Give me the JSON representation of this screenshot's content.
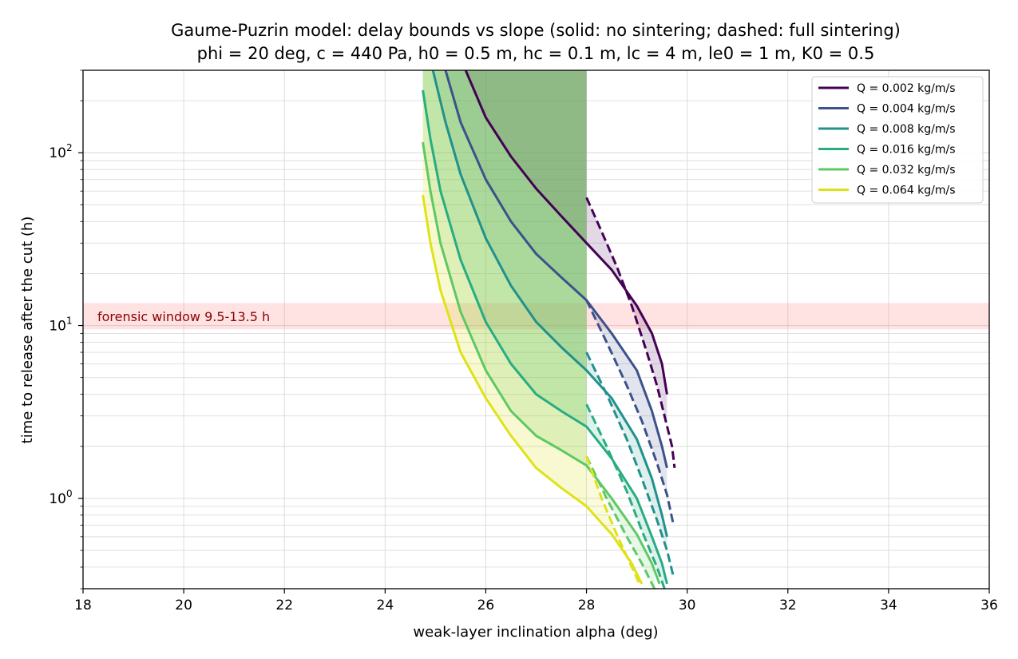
{
  "chart_data": {
    "type": "line",
    "title": "Gaume-Puzrin model: delay bounds vs slope (solid: no sintering; dashed: full sintering)",
    "subtitle": "phi = 20 deg, c = 440 Pa, h0 = 0.5 m, hc = 0.1 m, lc = 4 m, le0 = 1 m, K0 = 0.5",
    "xlabel": "weak-layer inclination alpha (deg)",
    "ylabel": "time to release after the cut (h)",
    "xlim": [
      18,
      36
    ],
    "ylim": [
      0.3,
      300
    ],
    "yscale": "log",
    "x_ticks": [
      18,
      20,
      22,
      24,
      26,
      28,
      30,
      32,
      34,
      36
    ],
    "y_ticks": [
      {
        "value": 1,
        "base": "10",
        "exp": "0"
      },
      {
        "value": 10,
        "base": "10",
        "exp": "1"
      },
      {
        "value": 100,
        "base": "10",
        "exp": "2"
      }
    ],
    "grid": true,
    "legend_position": "top-right",
    "annotation": {
      "text": "forensic window 9.5-13.5 h",
      "y_range": [
        9.5,
        13.5
      ],
      "color": "#ff9999",
      "text_color": "#8b0000"
    },
    "series": [
      {
        "name": "Q = 0.002 kg/m/s",
        "color": "#440154",
        "solid": [
          [
            25.6,
            300
          ],
          [
            26.0,
            160
          ],
          [
            26.5,
            95
          ],
          [
            27.0,
            62
          ],
          [
            27.5,
            43
          ],
          [
            28.0,
            30
          ],
          [
            28.5,
            21
          ],
          [
            29.0,
            13
          ],
          [
            29.3,
            9
          ],
          [
            29.5,
            6
          ],
          [
            29.6,
            4
          ]
        ],
        "dashed": [
          [
            28.0,
            55
          ],
          [
            28.3,
            35
          ],
          [
            28.6,
            22
          ],
          [
            28.9,
            13
          ],
          [
            29.2,
            7
          ],
          [
            29.4,
            4.5
          ],
          [
            29.55,
            3
          ],
          [
            29.7,
            2
          ],
          [
            29.75,
            1.5
          ]
        ]
      },
      {
        "name": "Q = 0.004 kg/m/s",
        "color": "#3b528b",
        "solid": [
          [
            25.2,
            300
          ],
          [
            25.5,
            150
          ],
          [
            26.0,
            70
          ],
          [
            26.5,
            40
          ],
          [
            27.0,
            26
          ],
          [
            27.5,
            19
          ],
          [
            28.0,
            14
          ],
          [
            28.5,
            9
          ],
          [
            29.0,
            5.5
          ],
          [
            29.3,
            3.2
          ],
          [
            29.5,
            2
          ],
          [
            29.6,
            1.5
          ]
        ],
        "dashed": [
          [
            28.0,
            14
          ],
          [
            28.4,
            8
          ],
          [
            28.8,
            4.5
          ],
          [
            29.1,
            2.8
          ],
          [
            29.4,
            1.6
          ],
          [
            29.6,
            1.05
          ],
          [
            29.72,
            0.72
          ]
        ]
      },
      {
        "name": "Q = 0.008 kg/m/s",
        "color": "#21918c",
        "solid": [
          [
            24.95,
            300
          ],
          [
            25.2,
            150
          ],
          [
            25.5,
            75
          ],
          [
            26.0,
            32
          ],
          [
            26.5,
            17
          ],
          [
            27.0,
            10.5
          ],
          [
            27.5,
            7.5
          ],
          [
            28.0,
            5.5
          ],
          [
            28.5,
            3.8
          ],
          [
            29.0,
            2.2
          ],
          [
            29.3,
            1.3
          ],
          [
            29.5,
            0.8
          ],
          [
            29.6,
            0.6
          ]
        ],
        "dashed": [
          [
            28.0,
            7
          ],
          [
            28.4,
            4
          ],
          [
            28.8,
            2.2
          ],
          [
            29.1,
            1.3
          ],
          [
            29.4,
            0.75
          ],
          [
            29.6,
            0.5
          ],
          [
            29.72,
            0.36
          ]
        ]
      },
      {
        "name": "Q = 0.016 kg/m/s",
        "color": "#27ad81",
        "solid": [
          [
            24.75,
            230
          ],
          [
            24.9,
            120
          ],
          [
            25.1,
            60
          ],
          [
            25.5,
            24
          ],
          [
            26.0,
            10.5
          ],
          [
            26.5,
            6
          ],
          [
            27.0,
            4
          ],
          [
            27.5,
            3.2
          ],
          [
            28.0,
            2.6
          ],
          [
            28.5,
            1.7
          ],
          [
            29.0,
            1.0
          ],
          [
            29.3,
            0.6
          ],
          [
            29.5,
            0.42
          ],
          [
            29.6,
            0.32
          ]
        ],
        "dashed": [
          [
            28.0,
            3.5
          ],
          [
            28.4,
            2.0
          ],
          [
            28.8,
            1.1
          ],
          [
            29.1,
            0.65
          ],
          [
            29.4,
            0.4
          ],
          [
            29.55,
            0.3
          ]
        ]
      },
      {
        "name": "Q = 0.032 kg/m/s",
        "color": "#5ec962",
        "solid": [
          [
            24.75,
            115
          ],
          [
            24.9,
            60
          ],
          [
            25.1,
            30
          ],
          [
            25.5,
            12
          ],
          [
            26.0,
            5.5
          ],
          [
            26.5,
            3.2
          ],
          [
            27.0,
            2.3
          ],
          [
            27.5,
            1.9
          ],
          [
            28.0,
            1.55
          ],
          [
            28.5,
            1.0
          ],
          [
            29.0,
            0.62
          ],
          [
            29.3,
            0.42
          ],
          [
            29.45,
            0.32
          ]
        ],
        "dashed": [
          [
            28.0,
            1.75
          ],
          [
            28.4,
            1.0
          ],
          [
            28.8,
            0.6
          ],
          [
            29.1,
            0.42
          ],
          [
            29.35,
            0.3
          ]
        ]
      },
      {
        "name": "Q = 0.064 kg/m/s",
        "color": "#dde318",
        "solid": [
          [
            24.75,
            57
          ],
          [
            24.9,
            30
          ],
          [
            25.1,
            16
          ],
          [
            25.5,
            7
          ],
          [
            26.0,
            3.8
          ],
          [
            26.5,
            2.3
          ],
          [
            27.0,
            1.5
          ],
          [
            27.5,
            1.15
          ],
          [
            28.0,
            0.9
          ],
          [
            28.5,
            0.62
          ],
          [
            28.9,
            0.42
          ],
          [
            29.1,
            0.32
          ]
        ],
        "dashed": [
          [
            28.0,
            1.75
          ],
          [
            28.3,
            1.0
          ],
          [
            28.6,
            0.62
          ],
          [
            28.9,
            0.4
          ],
          [
            29.05,
            0.32
          ]
        ]
      }
    ]
  }
}
